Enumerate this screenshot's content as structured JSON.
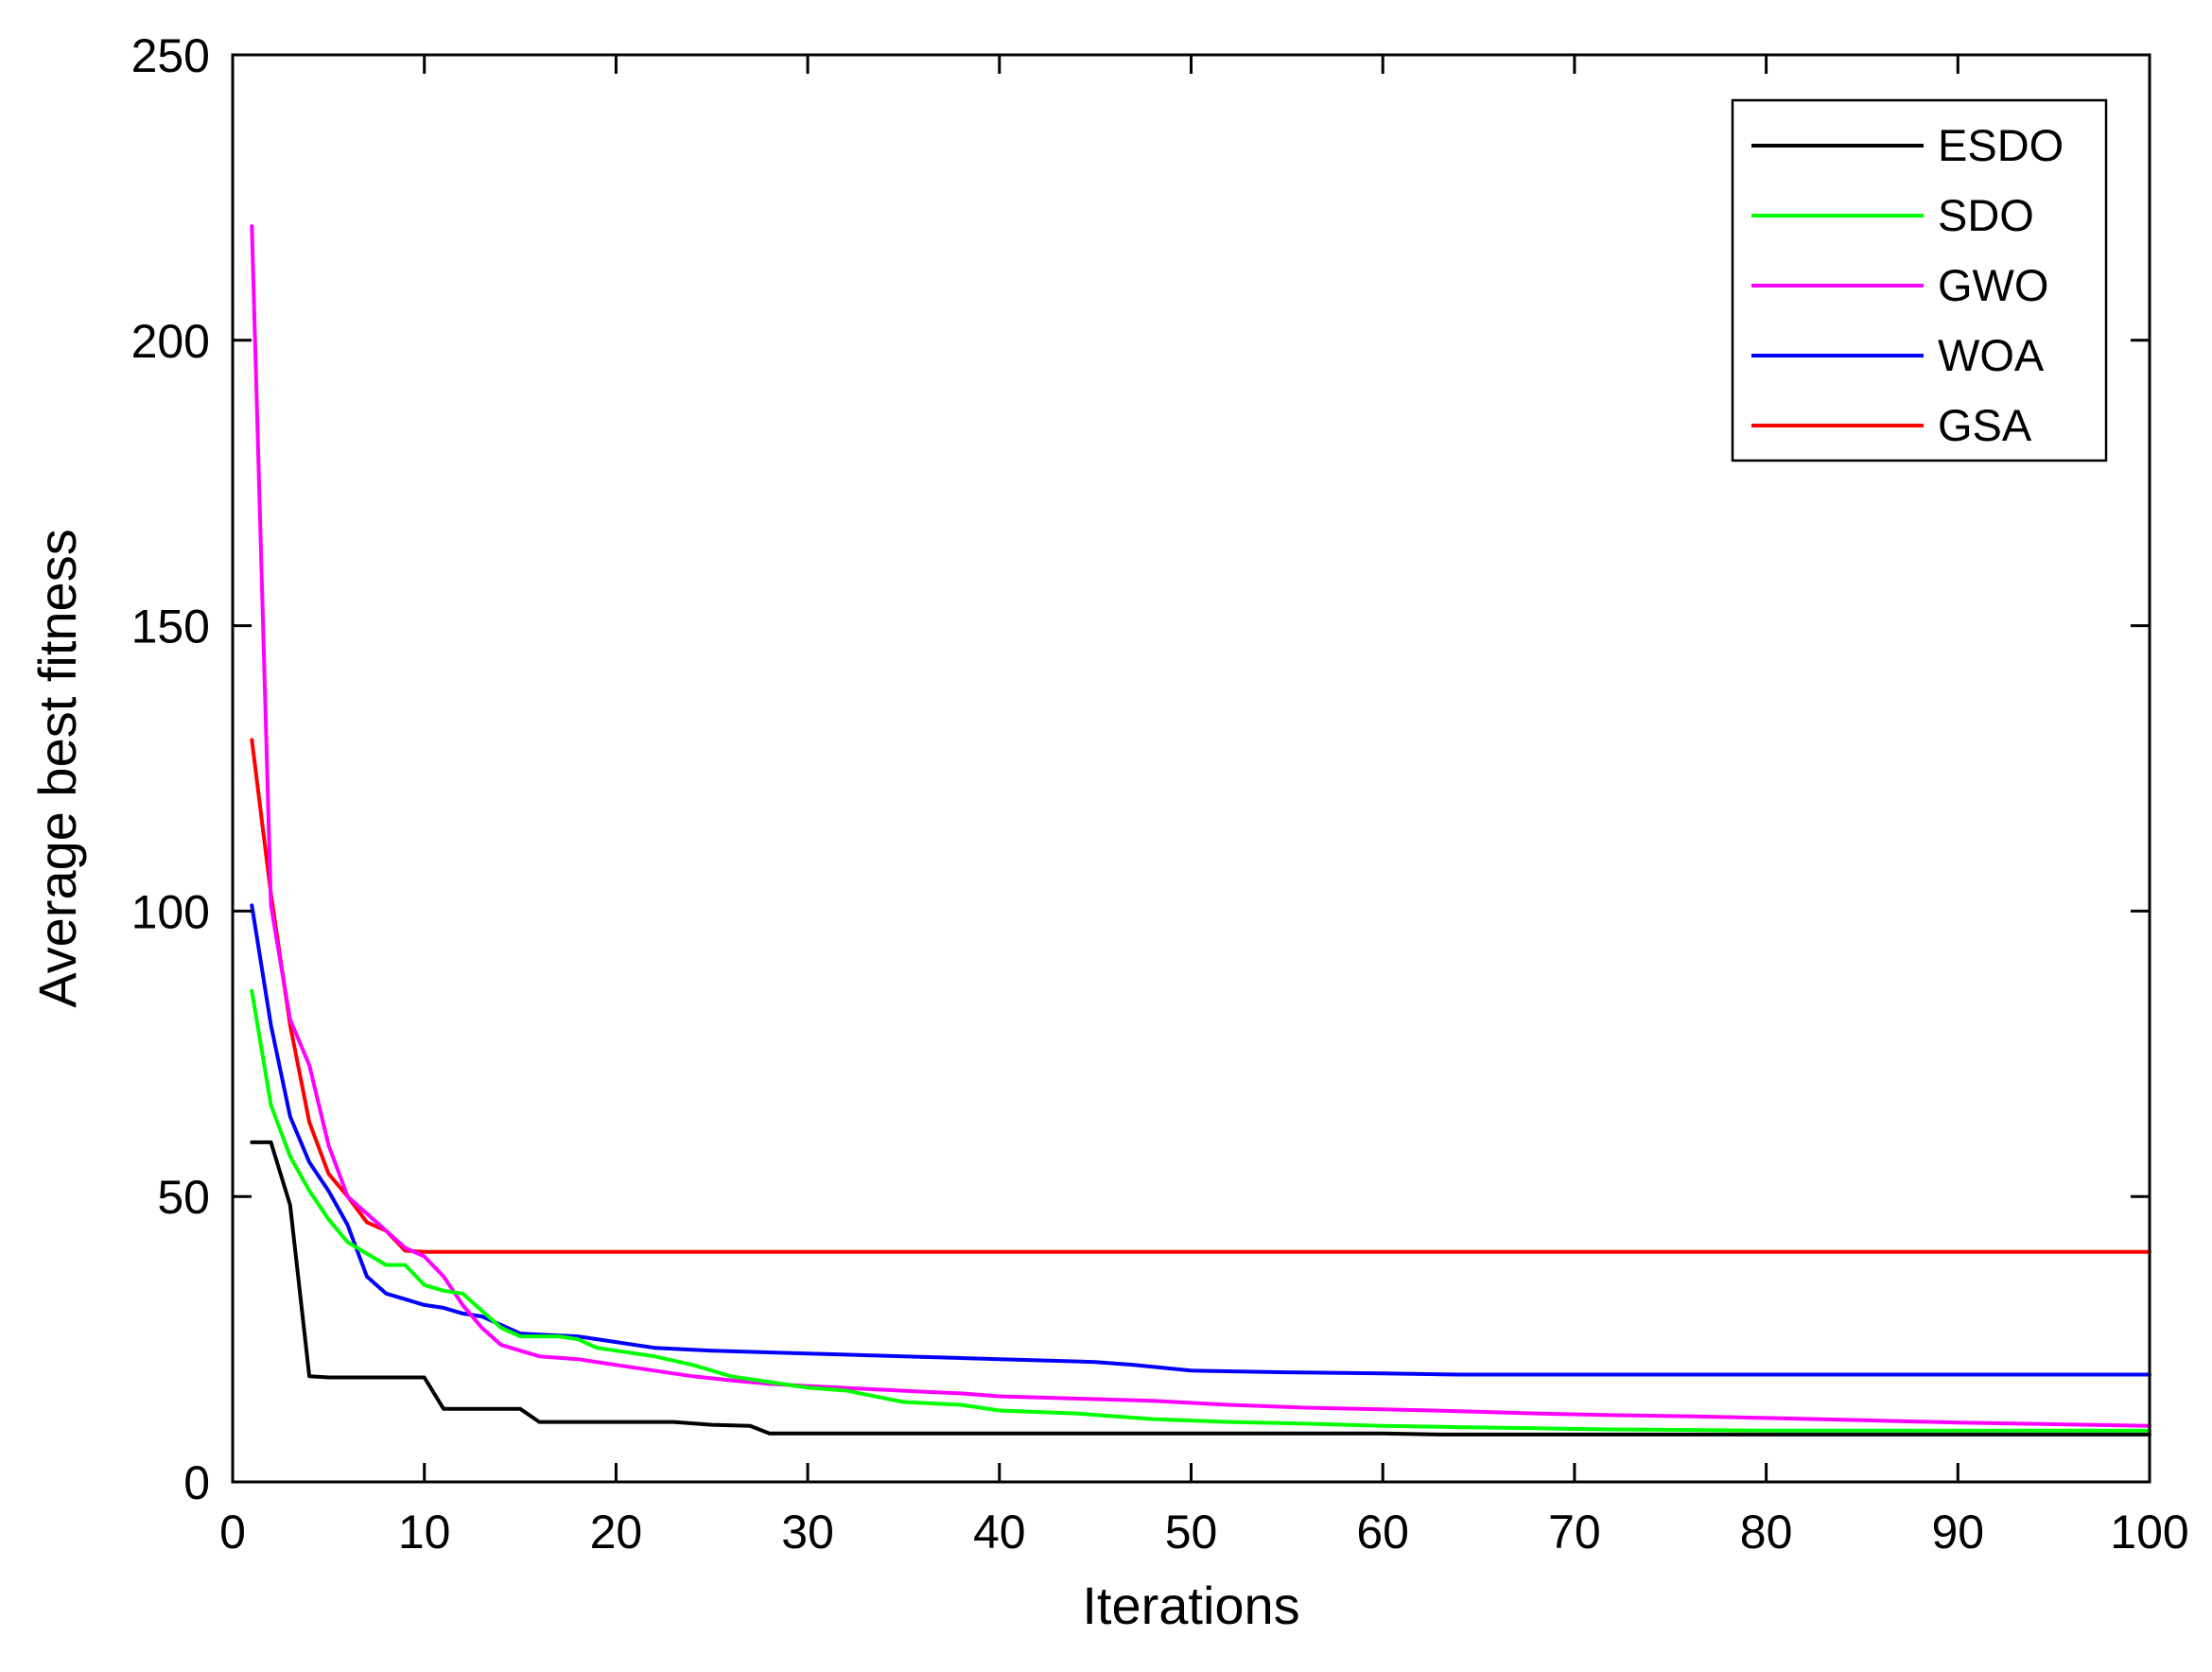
{
  "chart_data": {
    "type": "line",
    "title": "",
    "xlabel": "Iterations",
    "ylabel": "Average best fitness",
    "xlim": [
      0,
      100
    ],
    "ylim": [
      0,
      250
    ],
    "xticks": [
      0,
      10,
      20,
      30,
      40,
      50,
      60,
      70,
      80,
      90,
      100
    ],
    "yticks": [
      0,
      50,
      100,
      150,
      200,
      250
    ],
    "grid": false,
    "legend_position": "top-right",
    "series": [
      {
        "name": "ESDO",
        "color": "#000000",
        "x": [
          1,
          2,
          3,
          4,
          5,
          8,
          10,
          11,
          15,
          16,
          20,
          23,
          25,
          27,
          28,
          40,
          60,
          63,
          80,
          100
        ],
        "y": [
          59.5,
          59.5,
          48.5,
          18.5,
          18.3,
          18.3,
          18.3,
          12.8,
          12.8,
          10.5,
          10.5,
          10.5,
          10.0,
          9.8,
          8.5,
          8.5,
          8.5,
          8.3,
          8.3,
          8.3
        ]
      },
      {
        "name": "SDO",
        "color": "#00ff00",
        "x": [
          1,
          2,
          3,
          4,
          5,
          6,
          7,
          8,
          9,
          10,
          11,
          12,
          13,
          14,
          15,
          16,
          17,
          18,
          19,
          20,
          22,
          24,
          26,
          28,
          30,
          32,
          35,
          38,
          40,
          44,
          48,
          52,
          56,
          60,
          64,
          68,
          72,
          76,
          80,
          85,
          90,
          95,
          100
        ],
        "y": [
          86,
          66,
          57,
          51,
          46,
          42,
          40,
          38,
          38,
          34.5,
          33.5,
          33,
          30,
          27,
          25.5,
          25.5,
          25.5,
          25,
          23.5,
          23,
          22,
          20.5,
          18.5,
          17.5,
          16.5,
          16,
          14,
          13.5,
          12.5,
          12,
          11,
          10.5,
          10.2,
          9.8,
          9.6,
          9.4,
          9.2,
          9.1,
          9.0,
          9.0,
          9.0,
          9.0,
          9.0
        ]
      },
      {
        "name": "GWO",
        "color": "#ff00ff",
        "x": [
          1,
          2,
          3,
          4,
          5,
          6,
          7,
          8,
          9,
          10,
          11,
          12,
          13,
          14,
          15,
          16,
          18,
          20,
          22,
          24,
          26,
          28,
          30,
          33,
          36,
          38,
          40,
          44,
          48,
          52,
          56,
          60,
          64,
          68,
          72,
          76,
          80,
          85,
          90,
          95,
          100
        ],
        "y": [
          220,
          101,
          81,
          73,
          59,
          50,
          47,
          44,
          41,
          39.5,
          36,
          31,
          27,
          24,
          23,
          22,
          21.5,
          20.5,
          19.5,
          18.5,
          17.8,
          17.2,
          16.8,
          16.3,
          15.8,
          15.5,
          15,
          14.6,
          14.2,
          13.5,
          13,
          12.7,
          12.4,
          12,
          11.7,
          11.5,
          11.2,
          10.8,
          10.4,
          10.1,
          9.8
        ]
      },
      {
        "name": "WOA",
        "color": "#0000ff",
        "x": [
          1,
          2,
          3,
          4,
          5,
          6,
          7,
          8,
          9,
          10,
          11,
          12,
          13,
          14,
          15,
          16,
          18,
          20,
          22,
          25,
          30,
          35,
          40,
          45,
          47,
          50,
          55,
          60,
          64,
          70,
          80,
          90,
          100
        ],
        "y": [
          101,
          80,
          64,
          56,
          51,
          45,
          36,
          33,
          32,
          31,
          30.5,
          29.5,
          29,
          27.5,
          26,
          25.8,
          25.5,
          24.5,
          23.5,
          23,
          22.5,
          22,
          21.5,
          21,
          20.5,
          19.5,
          19.2,
          19.0,
          18.8,
          18.8,
          18.8,
          18.8,
          18.8
        ]
      },
      {
        "name": "GSA",
        "color": "#ff0000",
        "x": [
          1,
          2,
          3,
          4,
          5,
          6,
          7,
          8,
          9,
          10,
          20,
          40,
          60,
          80,
          100
        ],
        "y": [
          130,
          103,
          80,
          63,
          54,
          50,
          45.5,
          44,
          40.5,
          40.3,
          40.3,
          40.3,
          40.3,
          40.3,
          40.3
        ]
      }
    ]
  }
}
